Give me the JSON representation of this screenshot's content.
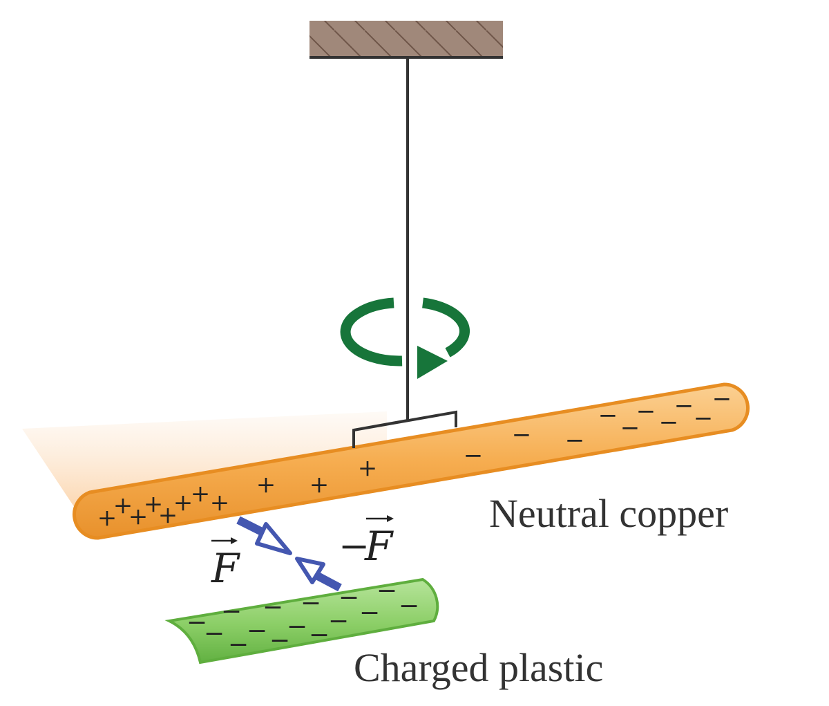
{
  "labels": {
    "copper": "Neutral copper",
    "plastic": "Charged plastic",
    "force": "F",
    "reaction_force_sign": "−",
    "reaction_force": "F"
  },
  "charges": {
    "plus": "+",
    "minus": "−"
  },
  "colors": {
    "ceiling": "#a0887a",
    "rod": "#f5a94a",
    "rod_edge": "#e78d22",
    "glow": "#fde3c8",
    "plastic": "#8fd06a",
    "plastic_edge": "#5fae3e",
    "rotation": "#17753a",
    "force_arrow": "#4457b0",
    "wire": "#333333"
  },
  "icons": {
    "rotation": "circular-arrow-icon",
    "force": "hollow-arrowhead-icon"
  }
}
